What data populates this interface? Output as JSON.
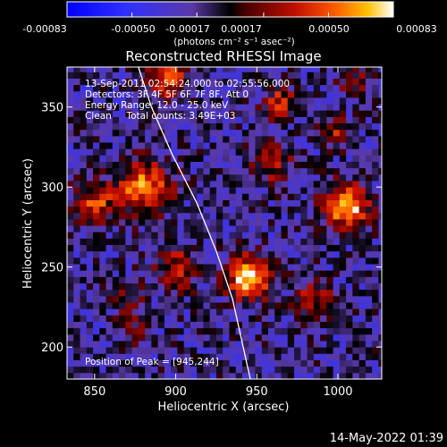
{
  "colorbar": {
    "ticks": [
      "-0.00083",
      "-0.00050",
      "-0.00017",
      "0.00017",
      "0.00050",
      "0.00083"
    ],
    "units": "(photons cm⁻² s⁻¹ asec⁻²)"
  },
  "plot": {
    "title": "Reconstructed RHESSI Image",
    "xlabel": "Heliocentric X (arcsec)",
    "ylabel": "Heliocentric Y (arcsec)"
  },
  "info": {
    "line1": "13-Sep-2011 02:54:24.000 to 02:55:56.000",
    "line2": "Detectors: 3F 4F 5F 6F 7F 8F, Att 0",
    "line3": "Energy Range: 12.0 - 25.0 keV",
    "line4": "Clean     Total counts: 3.49E+03",
    "peak": "Position of Peak = [945,244]"
  },
  "timestamp": "14-May-2022 01:39",
  "chart_data": {
    "type": "heatmap",
    "title": "Reconstructed RHESSI Image",
    "xlabel": "Heliocentric X (arcsec)",
    "ylabel": "Heliocentric Y (arcsec)",
    "xlim": [
      833,
      1027
    ],
    "ylim": [
      180,
      375
    ],
    "xticks": [
      850,
      900,
      950,
      1000
    ],
    "yticks": [
      200,
      250,
      300,
      350
    ],
    "colorbar_range": [
      -0.00083,
      0.00083
    ],
    "colorbar_ticks": [
      -0.00083,
      -0.0005,
      -0.00017,
      0.00017,
      0.0005,
      0.00083
    ],
    "limb_curve": [
      [
        877,
        375
      ],
      [
        885,
        350
      ],
      [
        898,
        320
      ],
      [
        913,
        290
      ],
      [
        925,
        260
      ],
      [
        935,
        230
      ],
      [
        946,
        180
      ]
    ],
    "sources": [
      {
        "x": 945,
        "y": 244,
        "sigma": 9,
        "amp": 1.0
      },
      {
        "x": 1005,
        "y": 288,
        "sigma": 9,
        "amp": 0.95
      },
      {
        "x": 880,
        "y": 300,
        "sigma": 11,
        "amp": 0.75
      },
      {
        "x": 850,
        "y": 290,
        "sigma": 9,
        "amp": 0.55
      },
      {
        "x": 895,
        "y": 368,
        "sigma": 8,
        "amp": 0.7
      },
      {
        "x": 965,
        "y": 352,
        "sigma": 7,
        "amp": 0.55
      },
      {
        "x": 960,
        "y": 315,
        "sigma": 8,
        "amp": 0.45
      },
      {
        "x": 985,
        "y": 230,
        "sigma": 8,
        "amp": 0.45
      },
      {
        "x": 900,
        "y": 250,
        "sigma": 9,
        "amp": 0.45
      },
      {
        "x": 870,
        "y": 230,
        "sigma": 7,
        "amp": 0.3
      },
      {
        "x": 1000,
        "y": 335,
        "sigma": 6,
        "amp": 0.4
      },
      {
        "x": 1010,
        "y": 365,
        "sigma": 6,
        "amp": 0.35
      },
      {
        "x": 875,
        "y": 210,
        "sigma": 6,
        "amp": 0.25
      }
    ]
  }
}
